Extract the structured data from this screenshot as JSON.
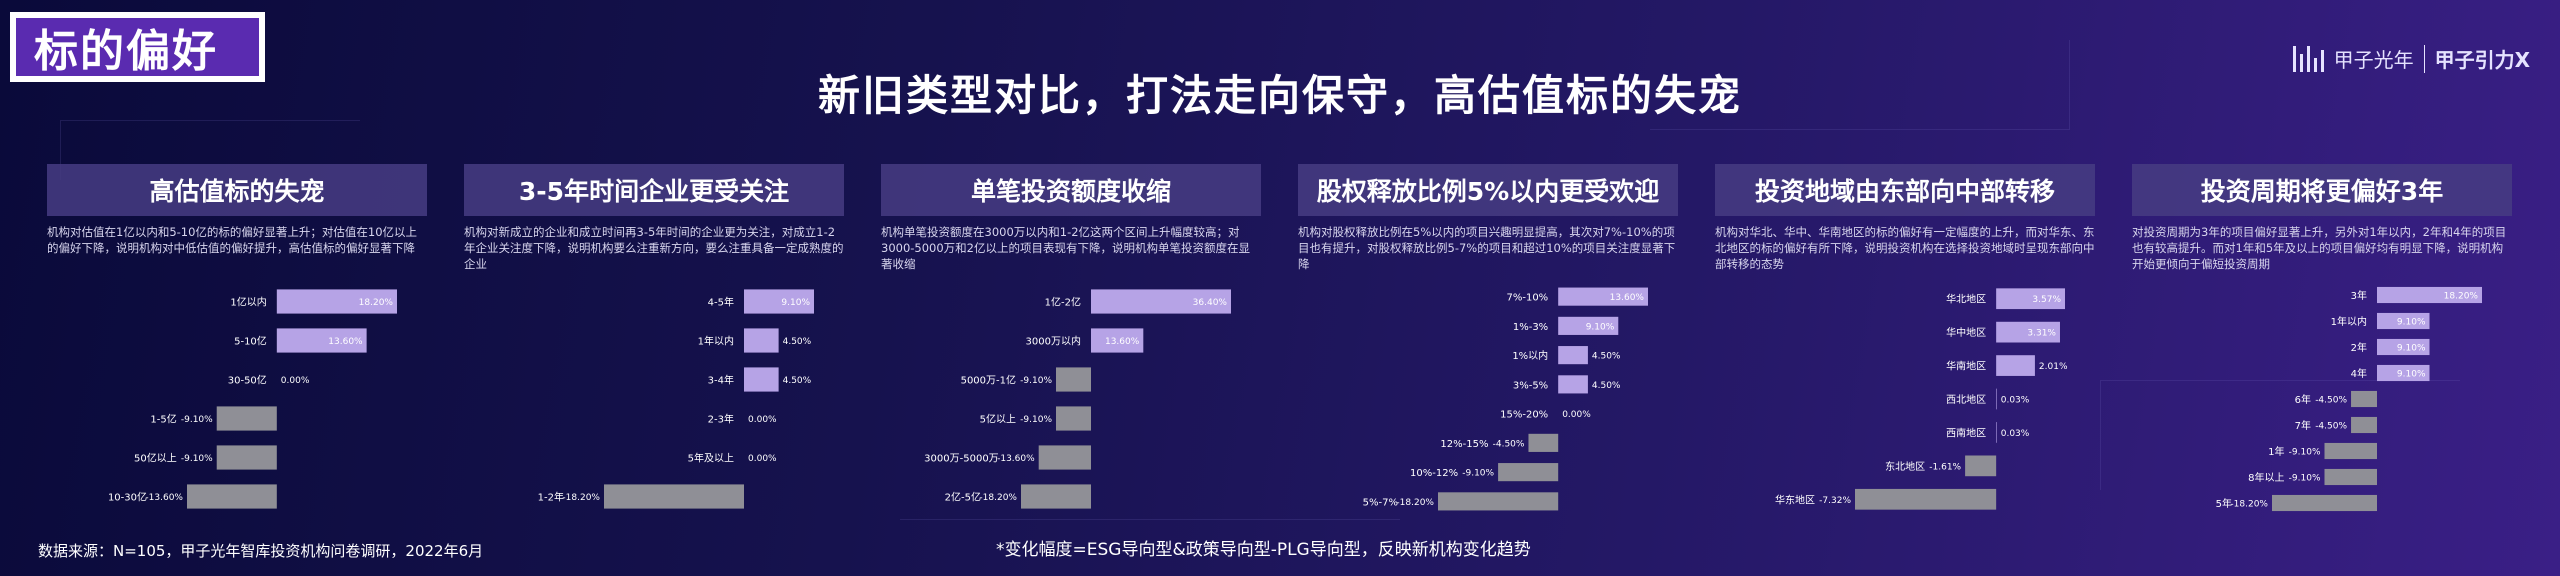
{
  "tag": "标的偏好",
  "headline": "新旧类型对比，打法走向保守，高估值标的失宠",
  "logo": {
    "name": "甲子光年",
    "brand": "甲子引力X"
  },
  "colors": {
    "positive": "#b6a3e6",
    "negative": "#8f8f96",
    "label": "#ffffff"
  },
  "footer": {
    "source": "数据来源：N=105，甲子光年智库投资机构问卷调研，2022年6月",
    "note": "*变化幅度=ESG导向型&政策导向型-PLG导向型，反映新机构变化趋势"
  },
  "panels": [
    {
      "title": "高估值标的失宠",
      "desc": "机构对估值在1亿以内和5-10亿的标的偏好显著上升；对估值在10亿以上的偏好下降，说明机构对中低估值的偏好提升，高估值标的偏好显著下降"
    },
    {
      "title": "3-5年时间企业更受关注",
      "desc": "机构对新成立的企业和成立时间再3-5年时间的企业更为关注，对成立1-2年企业关注度下降，说明机构要么注重新方向，要么注重具备一定成熟度的企业"
    },
    {
      "title": "单笔投资额度收缩",
      "desc": "机构单笔投资额度在3000万以内和1-2亿这两个区间上升幅度较高；对3000-5000万和2亿以上的项目表现有下降，说明机构单笔投资额度在显著收缩"
    },
    {
      "title": "股权释放比例5%以内更受欢迎",
      "desc": "机构对股权释放比例在5%以内的项目兴趣明显提高，其次对7%-10%的项目也有提升，对股权释放比例5-7%的项目和超过10%的项目关注度显著下降"
    },
    {
      "title": "投资地域由东部向中部转移",
      "desc": "机构对华北、华中、华南地区的标的偏好有一定幅度的上升，而对华东、东北地区的标的偏好有所下降，说明投资机构在选择投资地域时呈现东部向中部转移的态势"
    },
    {
      "title": "投资周期将更偏好3年",
      "desc": "对投资周期为3年的项目偏好显著上升，另外对1年以内，2年和4年的项目也有较高提升。而对1年和5年及以上的项目偏好均有明显下降，说明机构开始更倾向于偏短投资周期"
    }
  ],
  "chart_data": [
    {
      "type": "bar",
      "orientation": "horizontal",
      "categories": [
        "1亿以内",
        "5-10亿",
        "30-50亿",
        "1-5亿",
        "50亿以上",
        "10-30亿"
      ],
      "values": [
        18.2,
        13.6,
        0.0,
        -9.1,
        -9.1,
        -13.6
      ],
      "labels": [
        "18.20%",
        "13.60%",
        "0.00%",
        "-9.10%",
        "-9.10%",
        "-13.60%"
      ]
    },
    {
      "type": "bar",
      "orientation": "horizontal",
      "categories": [
        "4-5年",
        "1年以内",
        "3-4年",
        "2-3年",
        "5年及以上",
        "1-2年"
      ],
      "values": [
        9.1,
        4.5,
        4.5,
        0.0,
        0.0,
        -18.2
      ],
      "labels": [
        "9.10%",
        "4.50%",
        "4.50%",
        "0.00%",
        "0.00%",
        "-18.20%"
      ]
    },
    {
      "type": "bar",
      "orientation": "horizontal",
      "categories": [
        "1亿-2亿",
        "3000万以内",
        "5000万-1亿",
        "5亿以上",
        "3000万-5000万",
        "2亿-5亿"
      ],
      "values": [
        36.4,
        13.6,
        -9.1,
        -9.1,
        -13.6,
        -18.2
      ],
      "labels": [
        "36.40%",
        "13.60%",
        "-9.10%",
        "-9.10%",
        "-13.60%",
        "-18.20%"
      ]
    },
    {
      "type": "bar",
      "orientation": "horizontal",
      "categories": [
        "7%-10%",
        "1%-3%",
        "1%以内",
        "3%-5%",
        "15%-20%",
        "12%-15%",
        "10%-12%",
        "5%-7%"
      ],
      "values": [
        13.6,
        9.1,
        4.5,
        4.5,
        0.0,
        -4.5,
        -9.1,
        -18.2
      ],
      "labels": [
        "13.60%",
        "9.10%",
        "4.50%",
        "4.50%",
        "0.00%",
        "-4.50%",
        "-9.10%",
        "-18.20%"
      ]
    },
    {
      "type": "bar",
      "orientation": "horizontal",
      "categories": [
        "华北地区",
        "华中地区",
        "华南地区",
        "西北地区",
        "西南地区",
        "东北地区",
        "华东地区"
      ],
      "values": [
        3.57,
        3.31,
        2.01,
        0.03,
        0.03,
        -1.61,
        -7.32
      ],
      "labels": [
        "3.57%",
        "3.31%",
        "2.01%",
        "0.03%",
        "0.03%",
        "-1.61%",
        "-7.32%"
      ]
    },
    {
      "type": "bar",
      "orientation": "horizontal",
      "categories": [
        "3年",
        "1年以内",
        "2年",
        "4年",
        "6年",
        "7年",
        "1年",
        "8年以上",
        "5年"
      ],
      "values": [
        18.2,
        9.1,
        9.1,
        9.1,
        -4.5,
        -4.5,
        -9.1,
        -9.1,
        -18.2
      ],
      "labels": [
        "18.20%",
        "9.10%",
        "9.10%",
        "9.10%",
        "-4.50%",
        "-4.50%",
        "-9.10%",
        "-9.10%",
        "-18.20%"
      ]
    }
  ]
}
